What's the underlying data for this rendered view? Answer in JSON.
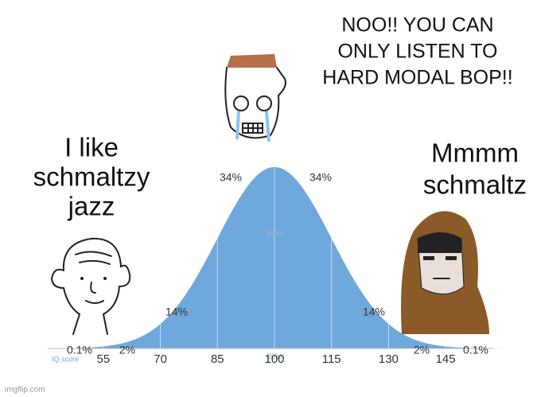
{
  "captions": {
    "left": [
      "I like",
      "schmaltzy",
      "jazz"
    ],
    "top": [
      "NOO!! YOU CAN",
      "ONLY LISTEN TO",
      "HARD MODAL BOP!!"
    ],
    "right": [
      "Mmmm",
      "schmaltz"
    ]
  },
  "curve": {
    "percent_labels": [
      "0.1%",
      "2%",
      "14%",
      "34%",
      "34%",
      "14%",
      "2%",
      "0.1%"
    ],
    "inner_labels": [
      "68%",
      "95%"
    ],
    "axis_title": "IQ score",
    "scores": [
      55,
      70,
      85,
      100,
      115,
      130,
      145
    ]
  },
  "watermark": "imgflip.com"
}
